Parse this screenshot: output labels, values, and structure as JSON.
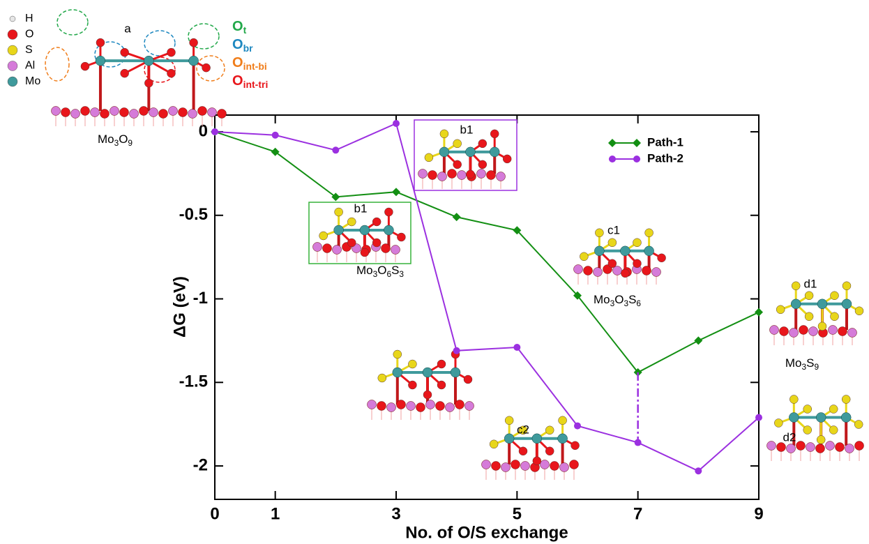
{
  "chart_data": {
    "type": "line",
    "x_label": "No. of O/S exchange",
    "y_label": "ΔG (eV)",
    "x": [
      0,
      1,
      2,
      3,
      4,
      5,
      6,
      7,
      8,
      9
    ],
    "xlim": [
      0,
      9
    ],
    "xticks": [
      0,
      1,
      3,
      5,
      7,
      9
    ],
    "ylim": [
      -2.2,
      0.1
    ],
    "yticks": [
      0,
      -0.5,
      -1,
      -1.5,
      -2
    ],
    "legend": "upper right",
    "series": [
      {
        "name": "Path-1",
        "color": "#138f13",
        "marker": "diamond",
        "values": [
          0,
          -0.12,
          -0.39,
          -0.36,
          -0.51,
          -0.59,
          -0.98,
          -1.44,
          -1.25,
          -1.08
        ]
      },
      {
        "name": "Path-2",
        "color": "#9b30e0",
        "marker": "circle",
        "values": [
          0,
          -0.02,
          -0.11,
          0.05,
          -1.31,
          -1.29,
          -1.76,
          -1.86,
          -2.03,
          -1.71
        ]
      }
    ]
  },
  "atom_legend": [
    {
      "label": "H",
      "color": "#e6e6e6"
    },
    {
      "label": "O",
      "color": "#e8161b"
    },
    {
      "label": "S",
      "color": "#e8d61a"
    },
    {
      "label": "Al",
      "color": "#d57bd9"
    },
    {
      "label": "Mo",
      "color": "#3f9a9c"
    }
  ],
  "site_legend": [
    {
      "parts": [
        "O",
        "t"
      ],
      "color": "#22a84a"
    },
    {
      "parts": [
        "O",
        "br"
      ],
      "color": "#1e88c0"
    },
    {
      "parts": [
        "O",
        "int-bi"
      ],
      "color": "#f07d1a"
    },
    {
      "parts": [
        "O",
        "int-tri"
      ],
      "color": "#e8161b"
    }
  ],
  "insets": [
    {
      "label": "a",
      "formula": [
        "Mo",
        "3",
        "O",
        "9"
      ]
    },
    {
      "label": "b1",
      "frame": "#9b30e0"
    },
    {
      "label": "b1",
      "frame": "#36b23a",
      "formula": [
        "Mo",
        "3",
        "O",
        "6",
        "S",
        "3"
      ]
    },
    {
      "label": "c1",
      "formula": [
        "Mo",
        "3",
        "O",
        "3",
        "S",
        "6"
      ]
    },
    {
      "label": "c2"
    },
    {
      "label": "d1",
      "formula": [
        "Mo",
        "3",
        "S",
        "9"
      ]
    },
    {
      "label": "d2"
    }
  ]
}
